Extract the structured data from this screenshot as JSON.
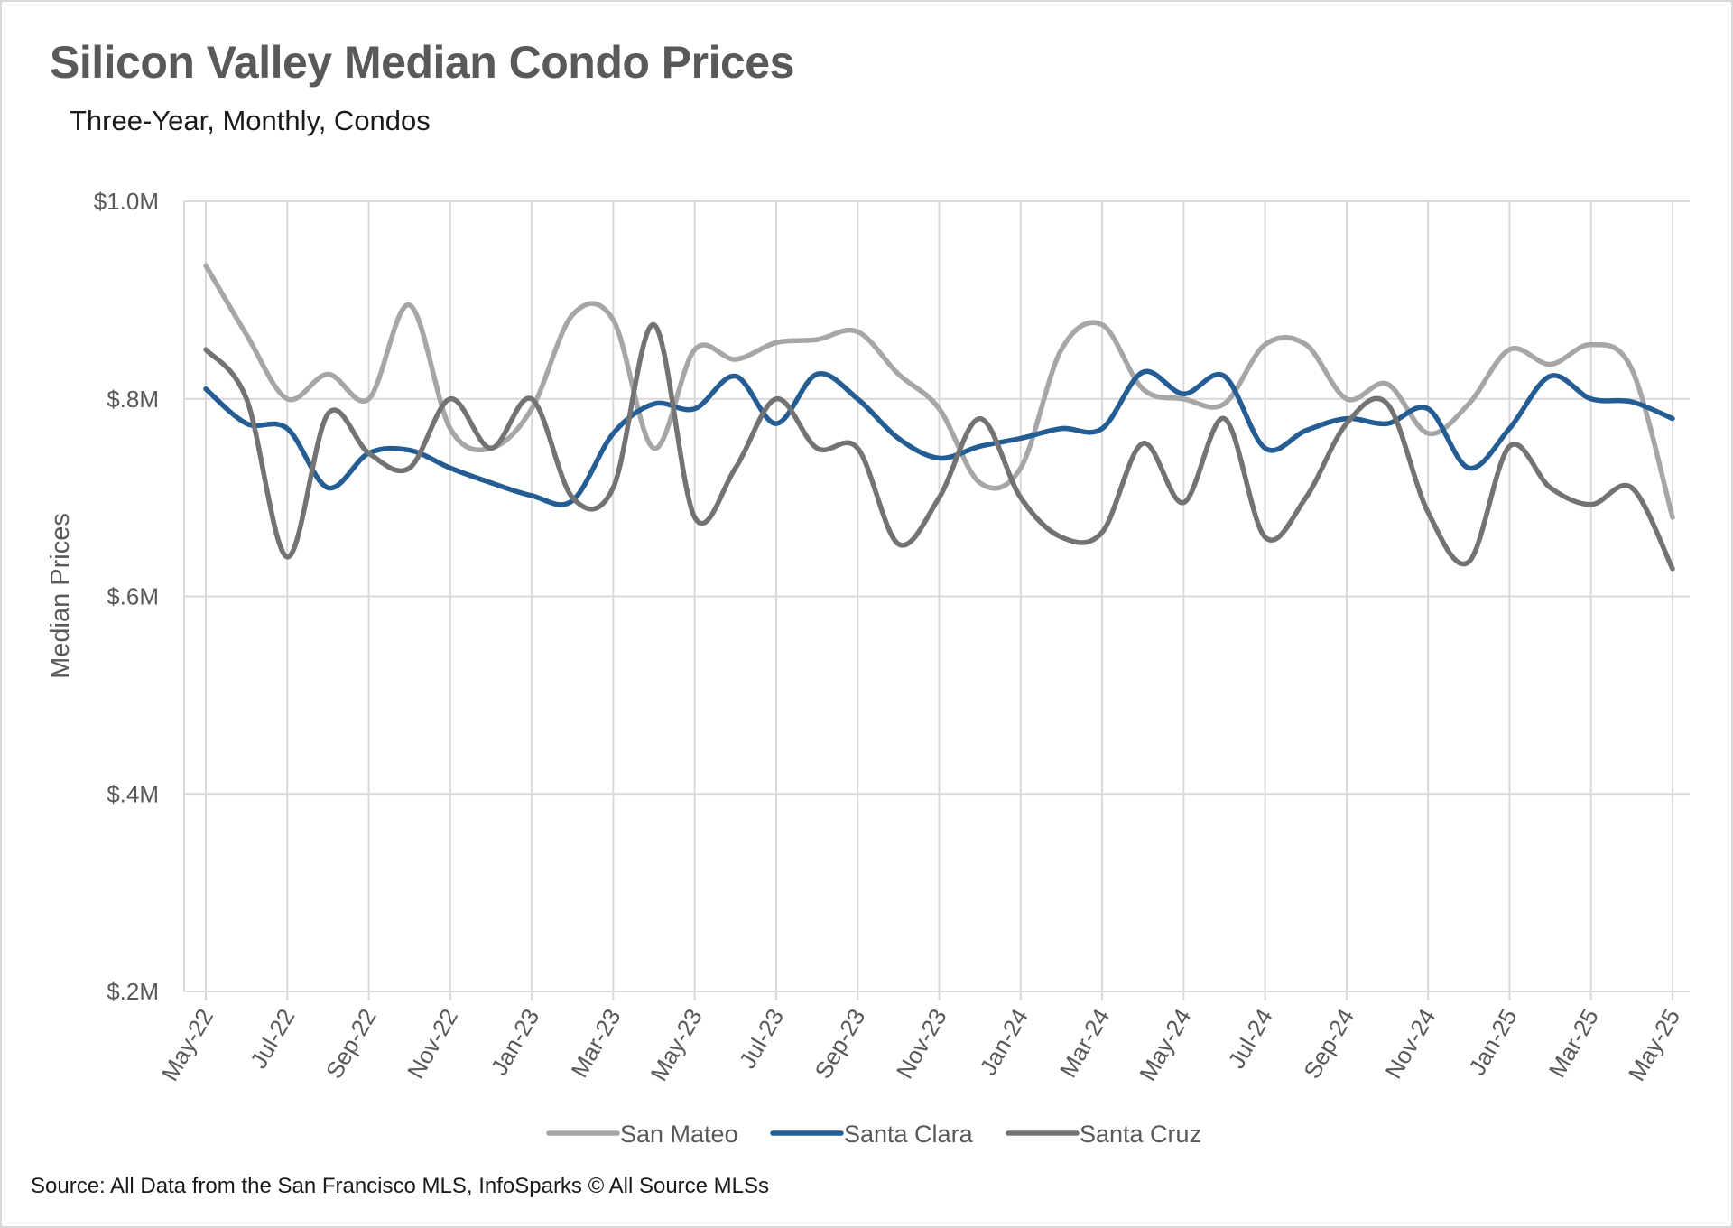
{
  "chart_data": {
    "type": "line",
    "title": "Silicon Valley Median Condo Prices",
    "subtitle": "Three-Year, Monthly, Condos",
    "source": "Source: All Data from the San Francisco MLS, InfoSparks © All Source MLSs",
    "ylabel": "Median Prices",
    "xlabel": "",
    "ylim": [
      200000,
      1000000
    ],
    "yticks": [
      200000,
      400000,
      600000,
      800000,
      1000000
    ],
    "ytick_labels": [
      "$.2M",
      "$.4M",
      "$.6M",
      "$.8M",
      "$1.0M"
    ],
    "x": [
      "May-22",
      "Jun-22",
      "Jul-22",
      "Aug-22",
      "Sep-22",
      "Oct-22",
      "Nov-22",
      "Dec-22",
      "Jan-23",
      "Feb-23",
      "Mar-23",
      "Apr-23",
      "May-23",
      "Jun-23",
      "Jul-23",
      "Aug-23",
      "Sep-23",
      "Oct-23",
      "Nov-23",
      "Dec-23",
      "Jan-24",
      "Feb-24",
      "Mar-24",
      "Apr-24",
      "May-24",
      "Jun-24",
      "Jul-24",
      "Aug-24",
      "Sep-24",
      "Oct-24",
      "Nov-24",
      "Dec-24",
      "Jan-25",
      "Feb-25",
      "Mar-25",
      "Apr-25",
      "May-25"
    ],
    "x_tick_labels": [
      "May-22",
      "Jul-22",
      "Sep-22",
      "Nov-22",
      "Jan-23",
      "Mar-23",
      "May-23",
      "Jul-23",
      "Sep-23",
      "Nov-23",
      "Jan-24",
      "Mar-24",
      "May-24",
      "Jul-24",
      "Sep-24",
      "Nov-24",
      "Jan-25",
      "Mar-25",
      "May-25"
    ],
    "grid": true,
    "legend_position": "bottom",
    "series": [
      {
        "name": "San Mateo",
        "color": "#a6a6a6",
        "values": [
          935000,
          865000,
          800000,
          825000,
          800000,
          895000,
          770000,
          750000,
          790000,
          885000,
          880000,
          750000,
          850000,
          840000,
          857000,
          860000,
          868000,
          825000,
          790000,
          715000,
          730000,
          850000,
          875000,
          810000,
          800000,
          795000,
          855000,
          855000,
          800000,
          815000,
          765000,
          795000,
          850000,
          835000,
          855000,
          830000,
          680000
        ]
      },
      {
        "name": "Santa Clara",
        "color": "#245c94",
        "values": [
          810000,
          775000,
          770000,
          710000,
          745000,
          748000,
          730000,
          715000,
          702000,
          697000,
          765000,
          795000,
          790000,
          823000,
          775000,
          825000,
          800000,
          760000,
          740000,
          752000,
          760000,
          770000,
          770000,
          827000,
          805000,
          823000,
          750000,
          768000,
          780000,
          775000,
          790000,
          730000,
          770000,
          823000,
          800000,
          797000,
          780000
        ]
      },
      {
        "name": "Santa Cruz",
        "color": "#737373",
        "values": [
          850000,
          800000,
          640000,
          785000,
          745000,
          730000,
          800000,
          750000,
          800000,
          700000,
          710000,
          875000,
          680000,
          730000,
          800000,
          750000,
          750000,
          653000,
          700000,
          780000,
          700000,
          660000,
          665000,
          755000,
          695000,
          780000,
          660000,
          700000,
          775000,
          795000,
          685000,
          635000,
          752000,
          710000,
          693000,
          710000,
          628000
        ]
      }
    ]
  }
}
